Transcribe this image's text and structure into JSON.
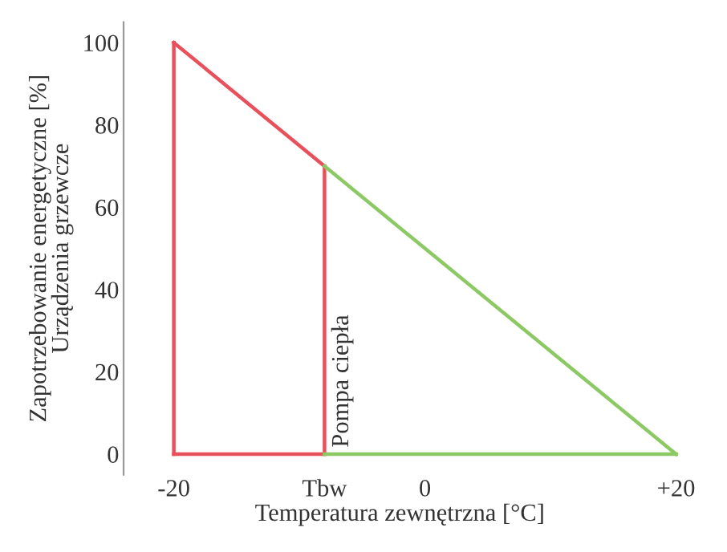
{
  "chart_data": {
    "type": "line",
    "xlabel": "Temperatura zewnętrzna [°C]",
    "ylabel": "Zapotrzebowanie energetyczne [%]\nUrządzenia grzewcze",
    "series": [
      {
        "x": [
          -20,
          -8
        ],
        "values": [
          100,
          70
        ],
        "color": "#e8505b"
      },
      {
        "x": [
          -20,
          -20
        ],
        "values": [
          0,
          100
        ],
        "color": "#e8505b"
      },
      {
        "x": [
          -8,
          -8
        ],
        "values": [
          0,
          70
        ],
        "color": "#e8505b"
      },
      {
        "x": [
          -20,
          -8
        ],
        "values": [
          0,
          0
        ],
        "color": "#e8505b"
      },
      {
        "x": [
          -8,
          20
        ],
        "values": [
          70,
          0
        ],
        "color": "#8cc864"
      },
      {
        "x": [
          -8,
          20
        ],
        "values": [
          0,
          0
        ],
        "color": "#8cc864"
      }
    ],
    "annotations": [
      {
        "text": "Pompa ciepła",
        "x": -8,
        "y": 0
      }
    ],
    "xlim": [
      -24,
      20
    ],
    "ylim": [
      -5,
      105
    ],
    "xticks": [
      -20,
      {
        "value": -8,
        "label": "Tbw"
      },
      0,
      {
        "value": 20,
        "label": "+20"
      }
    ],
    "yticks": [
      0,
      20,
      40,
      60,
      80,
      100
    ],
    "grid": false,
    "legend": false,
    "marker": "none",
    "line_style": "solid"
  }
}
